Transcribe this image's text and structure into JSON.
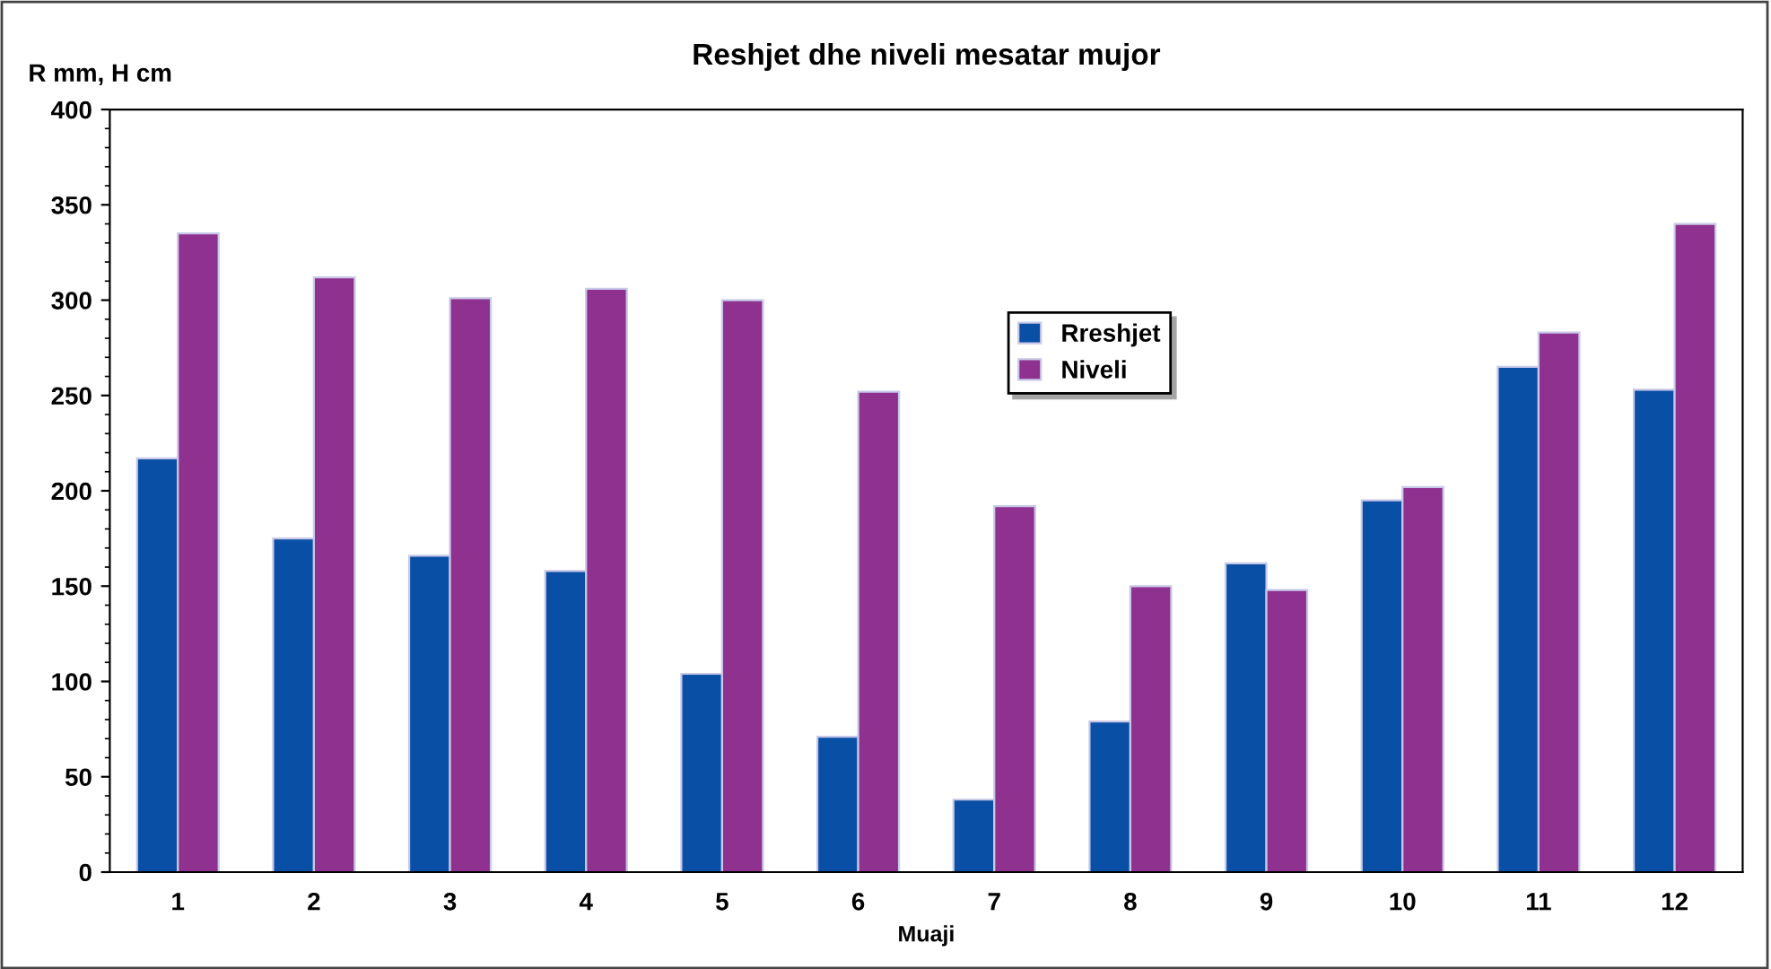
{
  "chart_data": {
    "type": "bar",
    "title": "Reshjet dhe niveli mesatar mujor",
    "xlabel": "Muaji",
    "ylabel": "R mm, H cm",
    "categories": [
      "1",
      "2",
      "3",
      "4",
      "5",
      "6",
      "7",
      "8",
      "9",
      "10",
      "11",
      "12"
    ],
    "series": [
      {
        "name": "Rreshjet",
        "color": "#0a4fa6",
        "values": [
          217,
          175,
          166,
          158,
          104,
          71,
          38,
          79,
          162,
          195,
          265,
          253
        ]
      },
      {
        "name": "Niveli",
        "color": "#8f318f",
        "values": [
          335,
          312,
          301,
          306,
          300,
          252,
          192,
          150,
          148,
          202,
          283,
          340
        ]
      }
    ],
    "ylim": [
      0,
      400
    ],
    "yticks": [
      0,
      50,
      100,
      150,
      200,
      250,
      300,
      350,
      400
    ],
    "grid": false,
    "legend": "top"
  }
}
